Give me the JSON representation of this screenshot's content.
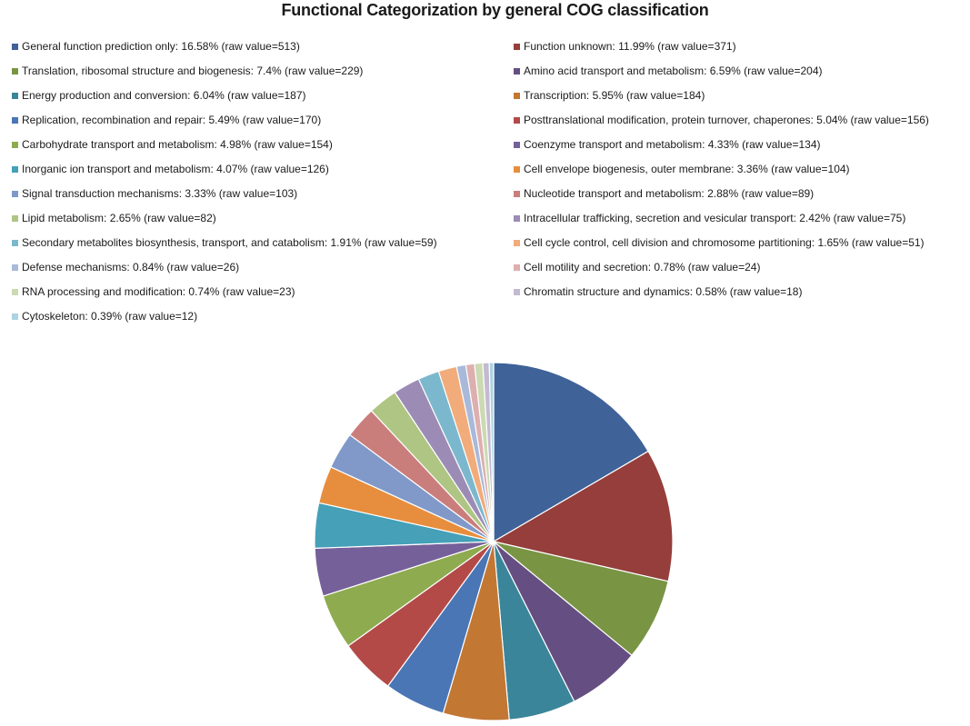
{
  "chart_data": {
    "type": "pie",
    "title": "Functional Categorization by general COG classification",
    "legend_position": "top",
    "slices": [
      {
        "label": "General function prediction only: 16.58% (raw value=513)",
        "name": "General function prediction only",
        "percent": 16.58,
        "value": 513,
        "color": "#3F6298"
      },
      {
        "label": "Function unknown:  11.99% (raw value=371)",
        "name": "Function unknown",
        "percent": 11.99,
        "value": 371,
        "color": "#953E3B"
      },
      {
        "label": "Translation, ribosomal structure and biogenesis: 7.4% (raw value=229)",
        "name": "Translation, ribosomal structure and biogenesis",
        "percent": 7.4,
        "value": 229,
        "color": "#799443"
      },
      {
        "label": "Amino acid transport and metabolism: 6.59% (raw value=204)",
        "name": "Amino acid transport and metabolism",
        "percent": 6.59,
        "value": 204,
        "color": "#654E81"
      },
      {
        "label": "Energy production and conversion: 6.04% (raw value=187)",
        "name": "Energy production and conversion",
        "percent": 6.04,
        "value": 187,
        "color": "#3A8599"
      },
      {
        "label": "Transcription: 5.95% (raw value=184)",
        "name": "Transcription",
        "percent": 5.95,
        "value": 184,
        "color": "#C27733"
      },
      {
        "label": "Replication, recombination and repair: 5.49% (raw value=170)",
        "name": "Replication, recombination and repair",
        "percent": 5.49,
        "value": 170,
        "color": "#4A76B5"
      },
      {
        "label": "Posttranslational modification, protein turnover, chaperones: 5.04% (raw value=156)",
        "name": "Posttranslational modification, protein turnover, chaperones",
        "percent": 5.04,
        "value": 156,
        "color": "#B34A47"
      },
      {
        "label": "Carbohydrate transport and metabolism: 4.98% (raw value=154)",
        "name": "Carbohydrate transport and metabolism",
        "percent": 4.98,
        "value": 154,
        "color": "#8EAB50"
      },
      {
        "label": "Coenzyme transport and metabolism: 4.33% (raw value=134)",
        "name": "Coenzyme transport and metabolism",
        "percent": 4.33,
        "value": 134,
        "color": "#76609A"
      },
      {
        "label": "Inorganic ion transport and metabolism: 4.07% (raw value=126)",
        "name": "Inorganic ion transport and metabolism",
        "percent": 4.07,
        "value": 126,
        "color": "#45A0B8"
      },
      {
        "label": "Cell envelope biogenesis, outer membrane: 3.36% (raw value=104)",
        "name": "Cell envelope biogenesis, outer membrane",
        "percent": 3.36,
        "value": 104,
        "color": "#E78E3E"
      },
      {
        "label": "Signal transduction mechanisms: 3.33% (raw value=103)",
        "name": "Signal transduction mechanisms",
        "percent": 3.33,
        "value": 103,
        "color": "#8099C9"
      },
      {
        "label": "Nucleotide transport and metabolism: 2.88% (raw value=89)",
        "name": "Nucleotide transport and metabolism",
        "percent": 2.88,
        "value": 89,
        "color": "#CA7E7C"
      },
      {
        "label": "Lipid metabolism: 2.65% (raw value=82)",
        "name": "Lipid metabolism",
        "percent": 2.65,
        "value": 82,
        "color": "#AFC583"
      },
      {
        "label": "Intracellular trafficking, secretion and vesicular transport: 2.42% (raw value=75)",
        "name": "Intracellular trafficking, secretion and vesicular transport",
        "percent": 2.42,
        "value": 75,
        "color": "#9C8CB5"
      },
      {
        "label": "Secondary metabolites biosynthesis, transport, and catabolism: 1.91% (raw value=59)",
        "name": "Secondary metabolites biosynthesis, transport, and catabolism",
        "percent": 1.91,
        "value": 59,
        "color": "#7CB8CD"
      },
      {
        "label": "Cell cycle control, cell division and chromosome partitioning: 1.65% (raw value=51)",
        "name": "Cell cycle control, cell division and chromosome partitioning",
        "percent": 1.65,
        "value": 51,
        "color": "#F2AB7A"
      },
      {
        "label": "Defense mechanisms: 0.84% (raw value=26)",
        "name": "Defense mechanisms",
        "percent": 0.84,
        "value": 26,
        "color": "#A9B9DA"
      },
      {
        "label": "Cell motility and secretion: 0.78% (raw value=24)",
        "name": "Cell motility and secretion",
        "percent": 0.78,
        "value": 24,
        "color": "#DDAFAE"
      },
      {
        "label": "RNA processing and modification:  0.74% (raw value=23)",
        "name": "RNA processing and modification",
        "percent": 0.74,
        "value": 23,
        "color": "#CCDAB3"
      },
      {
        "label": "Chromatin structure and dynamics: 0.58% (raw value=18)",
        "name": "Chromatin structure and dynamics",
        "percent": 0.58,
        "value": 18,
        "color": "#C3BAD2"
      },
      {
        "label": "Cytoskeleton: 0.39% (raw value=12)",
        "name": "Cytoskeleton",
        "percent": 0.39,
        "value": 12,
        "color": "#ABD3E2"
      }
    ]
  }
}
